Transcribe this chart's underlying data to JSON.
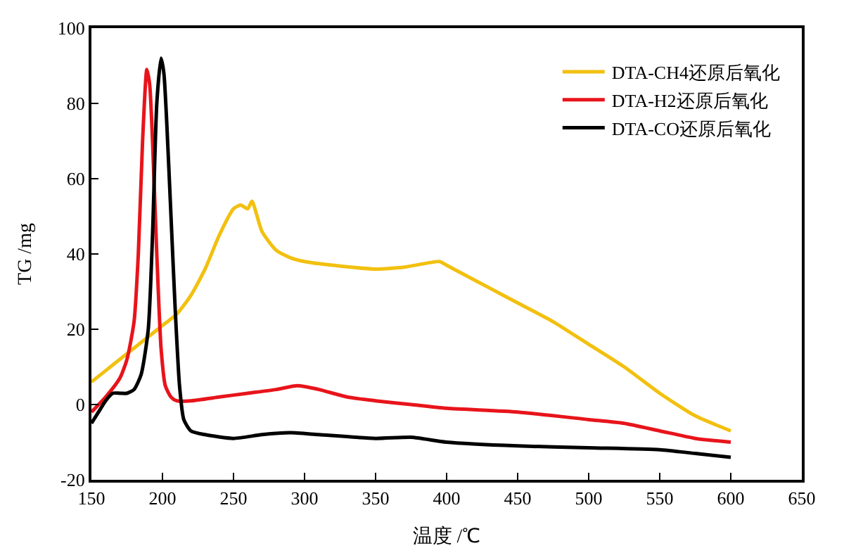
{
  "chart_data": {
    "type": "line",
    "xlabel": "温度 /℃",
    "ylabel": "TG /mg",
    "xlim": [
      150,
      650
    ],
    "xticks": [
      150,
      200,
      250,
      300,
      350,
      400,
      450,
      500,
      550,
      600,
      650
    ],
    "ylim": [
      -20,
      100
    ],
    "yticks": [
      -20,
      0,
      20,
      40,
      60,
      80,
      100
    ],
    "legend": "top right",
    "marker": "none",
    "line_style": "solid",
    "series": [
      {
        "name": "DTA-CH4还原后氧化",
        "color": "#f2c00f",
        "x": [
          150,
          160,
          170,
          180,
          190,
          200,
          210,
          220,
          230,
          240,
          250,
          255,
          260,
          263,
          270,
          280,
          290,
          300,
          320,
          350,
          370,
          385,
          395,
          400,
          410,
          430,
          450,
          475,
          500,
          525,
          550,
          575,
          600
        ],
        "values": [
          6,
          9,
          12,
          15,
          18,
          21,
          24,
          29,
          36,
          45,
          52,
          53,
          52,
          54,
          46,
          41,
          39,
          38,
          37,
          36,
          36.5,
          37.5,
          38,
          37,
          35,
          31,
          27,
          22,
          16,
          10,
          3,
          -3,
          -7
        ]
      },
      {
        "name": "DTA-H2还原后氧化",
        "color": "#e8141b",
        "x": [
          150,
          160,
          170,
          175,
          180,
          183,
          186,
          189,
          191,
          193,
          196,
          199,
          202,
          206,
          210,
          220,
          240,
          260,
          280,
          295,
          310,
          330,
          350,
          375,
          400,
          450,
          500,
          525,
          550,
          575,
          600
        ],
        "values": [
          -2,
          2,
          7,
          12,
          22,
          40,
          70,
          89,
          85,
          70,
          40,
          15,
          5,
          2,
          1,
          1,
          2,
          3,
          4,
          5,
          4,
          2,
          1,
          0,
          -1,
          -2,
          -4,
          -5,
          -7,
          -9,
          -10
        ]
      },
      {
        "name": "DTA-CO还原后氧化",
        "color": "#000000",
        "x": [
          150,
          155,
          160,
          165,
          170,
          175,
          180,
          185,
          190,
          193,
          196,
          199,
          201,
          203,
          206,
          209,
          212,
          215,
          220,
          230,
          250,
          270,
          290,
          310,
          350,
          375,
          400,
          450,
          500,
          550,
          575,
          600
        ],
        "values": [
          -5,
          -2,
          1,
          3,
          3,
          3,
          4,
          8,
          20,
          45,
          80,
          92,
          88,
          75,
          50,
          25,
          5,
          -4,
          -7,
          -8,
          -9,
          -8,
          -7.5,
          -8,
          -9,
          -8.7,
          -10,
          -11,
          -11.5,
          -12,
          -13,
          -14
        ]
      }
    ]
  }
}
